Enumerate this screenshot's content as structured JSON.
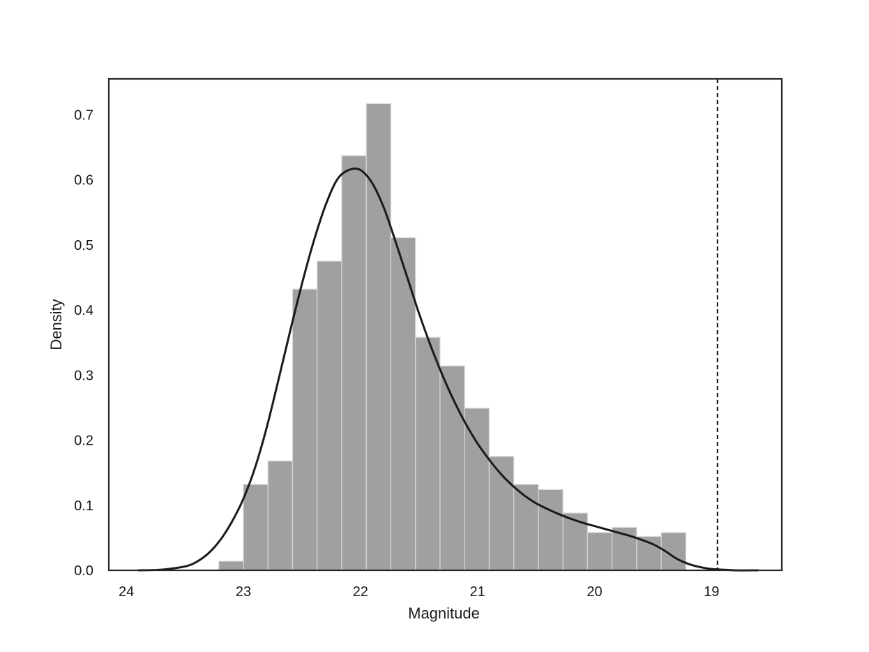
{
  "chart_data": {
    "type": "bar",
    "title": "",
    "xlabel": "Magnitude",
    "ylabel": "Density",
    "x_inverted": true,
    "xlim": [
      24.15,
      18.4
    ],
    "ylim": [
      0,
      0.755
    ],
    "xticks": [
      24,
      23,
      22,
      21,
      20,
      19
    ],
    "xtick_labels": [
      "24",
      "23",
      "22",
      "21",
      "20",
      "19"
    ],
    "yticks": [
      0.0,
      0.1,
      0.2,
      0.3,
      0.4,
      0.5,
      0.6,
      0.7
    ],
    "ytick_labels": [
      "0.0",
      "0.1",
      "0.2",
      "0.3",
      "0.4",
      "0.5",
      "0.6",
      "0.7"
    ],
    "grid": false,
    "histogram": {
      "bin_edges": [
        23.21,
        23.0,
        22.79,
        22.58,
        22.37,
        22.16,
        21.95,
        21.74,
        21.53,
        21.32,
        21.11,
        20.9,
        20.69,
        20.48,
        20.27,
        20.06,
        19.85,
        19.64,
        19.43,
        19.22
      ],
      "values": [
        0.014,
        0.132,
        0.168,
        0.432,
        0.475,
        0.637,
        0.717,
        0.511,
        0.358,
        0.314,
        0.249,
        0.175,
        0.132,
        0.124,
        0.088,
        0.058,
        0.066,
        0.052,
        0.058
      ],
      "color": "#a0a0a0",
      "edge_color": "#d8d8d8"
    },
    "kde": {
      "x": [
        23.9,
        23.7,
        23.5,
        23.4,
        23.3,
        23.2,
        23.1,
        23.0,
        22.9,
        22.8,
        22.7,
        22.6,
        22.5,
        22.4,
        22.3,
        22.2,
        22.1,
        22.0,
        21.9,
        21.8,
        21.7,
        21.6,
        21.5,
        21.4,
        21.3,
        21.2,
        21.1,
        21.0,
        20.9,
        20.8,
        20.7,
        20.6,
        20.5,
        20.4,
        20.3,
        20.2,
        20.1,
        20.0,
        19.9,
        19.8,
        19.7,
        19.6,
        19.5,
        19.4,
        19.3,
        19.2,
        19.1,
        19.0,
        18.9,
        18.8,
        18.6
      ],
      "y": [
        0.0,
        0.001,
        0.006,
        0.013,
        0.026,
        0.046,
        0.074,
        0.11,
        0.158,
        0.22,
        0.293,
        0.368,
        0.44,
        0.505,
        0.56,
        0.6,
        0.615,
        0.615,
        0.595,
        0.557,
        0.505,
        0.45,
        0.395,
        0.345,
        0.3,
        0.26,
        0.225,
        0.195,
        0.17,
        0.148,
        0.13,
        0.115,
        0.103,
        0.094,
        0.086,
        0.079,
        0.073,
        0.068,
        0.063,
        0.058,
        0.053,
        0.047,
        0.04,
        0.03,
        0.018,
        0.01,
        0.005,
        0.002,
        0.001,
        0.0,
        0.0
      ],
      "color": "#1a1a1a"
    },
    "vline": {
      "x": 18.95,
      "style": "dashed",
      "color": "#000000"
    }
  }
}
